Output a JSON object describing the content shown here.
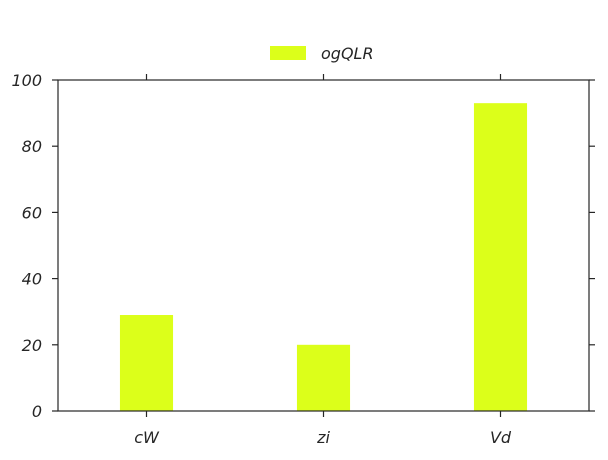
{
  "chart_data": {
    "type": "bar",
    "categories": [
      "cW",
      "zi",
      "Vd"
    ],
    "series": [
      {
        "name": "ogQLR",
        "values": [
          29,
          20,
          93
        ],
        "color": "#dcff1a"
      }
    ],
    "ylim": [
      0,
      100
    ],
    "yticks": [
      0,
      20,
      40,
      60,
      80,
      100
    ],
    "legend_position": "top-center",
    "grid": false
  }
}
